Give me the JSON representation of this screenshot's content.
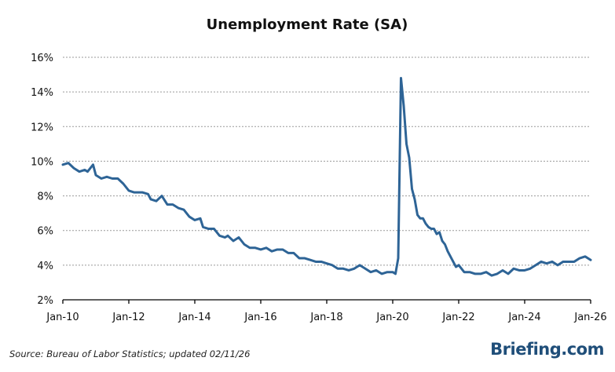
{
  "chart_data": {
    "type": "line",
    "title": "Unemployment Rate (SA)",
    "xlabel": "",
    "ylabel": "",
    "x_ticks": [
      "Jan-10",
      "Jan-12",
      "Jan-14",
      "Jan-16",
      "Jan-18",
      "Jan-20",
      "Jan-22",
      "Jan-24",
      "Jan-26"
    ],
    "y_ticks": [
      "2%",
      "4%",
      "6%",
      "8%",
      "10%",
      "12%",
      "14%",
      "16%"
    ],
    "ylim": [
      2,
      16
    ],
    "xlim": [
      "2010-01",
      "2026-01"
    ],
    "grid": true,
    "color": "#2e6496",
    "series": [
      {
        "points": [
          [
            "2010-01",
            9.8
          ],
          [
            "2010-03",
            9.9
          ],
          [
            "2010-05",
            9.6
          ],
          [
            "2010-07",
            9.4
          ],
          [
            "2010-09",
            9.5
          ],
          [
            "2010-10",
            9.4
          ],
          [
            "2010-12",
            9.8
          ],
          [
            "2011-01",
            9.2
          ],
          [
            "2011-03",
            9.0
          ],
          [
            "2011-05",
            9.1
          ],
          [
            "2011-07",
            9.0
          ],
          [
            "2011-09",
            9.0
          ],
          [
            "2011-11",
            8.7
          ],
          [
            "2012-01",
            8.3
          ],
          [
            "2012-03",
            8.2
          ],
          [
            "2012-06",
            8.2
          ],
          [
            "2012-08",
            8.1
          ],
          [
            "2012-09",
            7.8
          ],
          [
            "2012-11",
            7.7
          ],
          [
            "2013-01",
            8.0
          ],
          [
            "2013-03",
            7.5
          ],
          [
            "2013-05",
            7.5
          ],
          [
            "2013-07",
            7.3
          ],
          [
            "2013-09",
            7.2
          ],
          [
            "2013-11",
            6.8
          ],
          [
            "2014-01",
            6.6
          ],
          [
            "2014-03",
            6.7
          ],
          [
            "2014-04",
            6.2
          ],
          [
            "2014-06",
            6.1
          ],
          [
            "2014-08",
            6.1
          ],
          [
            "2014-10",
            5.7
          ],
          [
            "2014-12",
            5.6
          ],
          [
            "2015-01",
            5.7
          ],
          [
            "2015-03",
            5.4
          ],
          [
            "2015-05",
            5.6
          ],
          [
            "2015-07",
            5.2
          ],
          [
            "2015-09",
            5.0
          ],
          [
            "2015-11",
            5.0
          ],
          [
            "2016-01",
            4.9
          ],
          [
            "2016-03",
            5.0
          ],
          [
            "2016-05",
            4.8
          ],
          [
            "2016-07",
            4.9
          ],
          [
            "2016-09",
            4.9
          ],
          [
            "2016-11",
            4.7
          ],
          [
            "2017-01",
            4.7
          ],
          [
            "2017-03",
            4.4
          ],
          [
            "2017-05",
            4.4
          ],
          [
            "2017-07",
            4.3
          ],
          [
            "2017-09",
            4.2
          ],
          [
            "2017-11",
            4.2
          ],
          [
            "2018-01",
            4.1
          ],
          [
            "2018-03",
            4.0
          ],
          [
            "2018-05",
            3.8
          ],
          [
            "2018-07",
            3.8
          ],
          [
            "2018-09",
            3.7
          ],
          [
            "2018-11",
            3.8
          ],
          [
            "2019-01",
            4.0
          ],
          [
            "2019-03",
            3.8
          ],
          [
            "2019-05",
            3.6
          ],
          [
            "2019-07",
            3.7
          ],
          [
            "2019-09",
            3.5
          ],
          [
            "2019-11",
            3.6
          ],
          [
            "2020-01",
            3.6
          ],
          [
            "2020-02",
            3.5
          ],
          [
            "2020-03",
            4.4
          ],
          [
            "2020-04",
            14.8
          ],
          [
            "2020-05",
            13.2
          ],
          [
            "2020-06",
            11.0
          ],
          [
            "2020-07",
            10.2
          ],
          [
            "2020-08",
            8.4
          ],
          [
            "2020-09",
            7.8
          ],
          [
            "2020-10",
            6.9
          ],
          [
            "2020-11",
            6.7
          ],
          [
            "2020-12",
            6.7
          ],
          [
            "2021-01",
            6.4
          ],
          [
            "2021-02",
            6.2
          ],
          [
            "2021-03",
            6.1
          ],
          [
            "2021-04",
            6.1
          ],
          [
            "2021-05",
            5.8
          ],
          [
            "2021-06",
            5.9
          ],
          [
            "2021-07",
            5.4
          ],
          [
            "2021-08",
            5.2
          ],
          [
            "2021-09",
            4.8
          ],
          [
            "2021-10",
            4.5
          ],
          [
            "2021-11",
            4.2
          ],
          [
            "2021-12",
            3.9
          ],
          [
            "2022-01",
            4.0
          ],
          [
            "2022-03",
            3.6
          ],
          [
            "2022-05",
            3.6
          ],
          [
            "2022-07",
            3.5
          ],
          [
            "2022-09",
            3.5
          ],
          [
            "2022-11",
            3.6
          ],
          [
            "2023-01",
            3.4
          ],
          [
            "2023-03",
            3.5
          ],
          [
            "2023-05",
            3.7
          ],
          [
            "2023-07",
            3.5
          ],
          [
            "2023-09",
            3.8
          ],
          [
            "2023-11",
            3.7
          ],
          [
            "2024-01",
            3.7
          ],
          [
            "2024-03",
            3.8
          ],
          [
            "2024-05",
            4.0
          ],
          [
            "2024-07",
            4.2
          ],
          [
            "2024-09",
            4.1
          ],
          [
            "2024-11",
            4.2
          ],
          [
            "2025-01",
            4.0
          ],
          [
            "2025-03",
            4.2
          ],
          [
            "2025-05",
            4.2
          ],
          [
            "2025-07",
            4.2
          ],
          [
            "2025-09",
            4.4
          ],
          [
            "2025-11",
            4.5
          ],
          [
            "2026-01",
            4.3
          ]
        ]
      }
    ]
  },
  "footer": {
    "source": "Source: Bureau of Labor Statistics; updated 02/11/26",
    "brand": "Briefing.com"
  }
}
